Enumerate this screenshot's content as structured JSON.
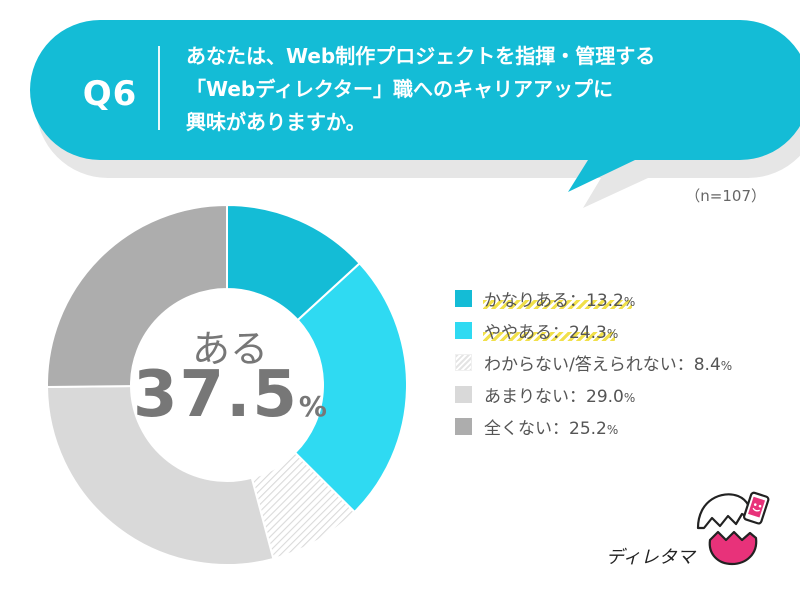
{
  "header": {
    "q_number": "Q6",
    "question_lines": [
      "あなたは、Web制作プロジェクトを指揮・管理する",
      "「Webディレクター」職へのキャリアアップに",
      "興味がありますか。"
    ],
    "sample_size": "（n=107）"
  },
  "summary": {
    "label": "ある",
    "value": "37.5",
    "unit": "%"
  },
  "logo": {
    "text": "ディレタマ"
  },
  "colors": {
    "bubble": "#14bcd6",
    "bubble_shadow": "#e6e6e6",
    "highlight": "#f1e04a"
  },
  "chart_data": {
    "type": "pie",
    "donut": true,
    "start": "top",
    "direction": "clockwise",
    "legend_position": "right",
    "slices": [
      {
        "label": "かなりある",
        "value": 13.2,
        "value_text": "13.2",
        "color": "#14bcd6",
        "highlight": true
      },
      {
        "label": "ややある",
        "value": 24.3,
        "value_text": "24.3",
        "color": "#2fdaf2",
        "highlight": true
      },
      {
        "label": "わからない/答えられない",
        "value": 8.4,
        "value_text": "8.4",
        "color": "hatched",
        "highlight": false
      },
      {
        "label": "あまりない",
        "value": 29.0,
        "value_text": "29.0",
        "color": "#d9d9d9",
        "highlight": false
      },
      {
        "label": "全くない",
        "value": 25.2,
        "value_text": "25.2",
        "color": "#adadad",
        "highlight": false
      }
    ]
  }
}
